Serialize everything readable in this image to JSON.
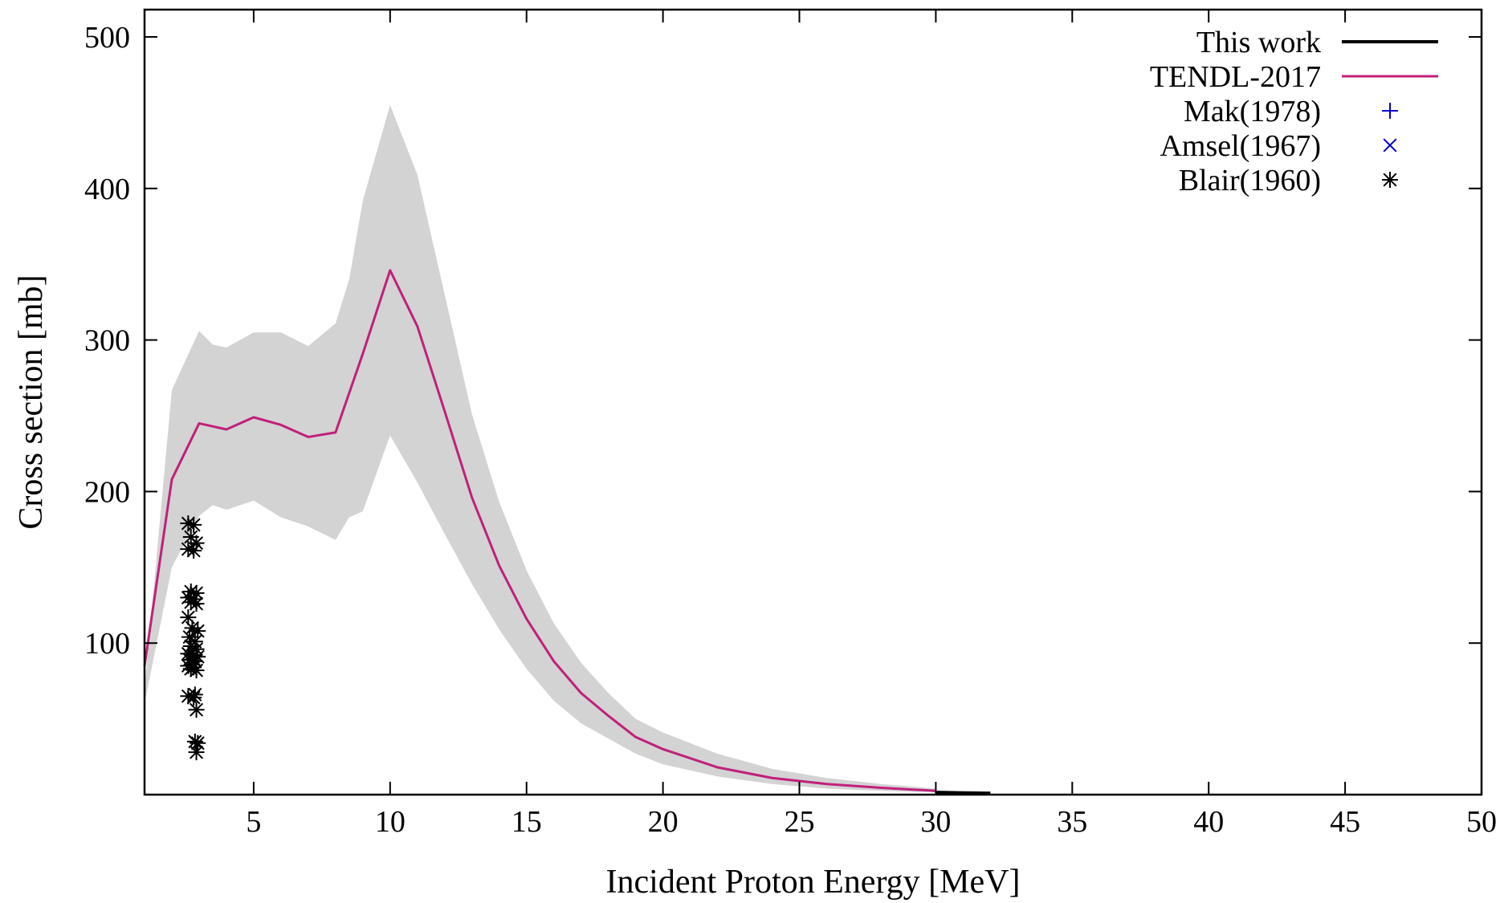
{
  "chart_data": {
    "type": "line",
    "xlabel": "Incident Proton Energy [MeV]",
    "ylabel": "Cross section [mb]",
    "xlim": [
      1,
      50
    ],
    "ylim": [
      0,
      518
    ],
    "x_ticks": [
      5,
      10,
      15,
      20,
      25,
      30,
      35,
      40,
      45,
      50
    ],
    "y_ticks": [
      100,
      200,
      300,
      400,
      500
    ],
    "grid": false,
    "legend_position": "top-right",
    "series": [
      {
        "name": "This work",
        "style": "line",
        "color": "#000000",
        "x": [
          30,
          31,
          32
        ],
        "y": [
          1.5,
          1.2,
          0.9
        ]
      },
      {
        "name": "TENDL-2017",
        "style": "line",
        "color": "#c0207a",
        "x": [
          1,
          2,
          3,
          4,
          5,
          6,
          7,
          8,
          9,
          10,
          11,
          12,
          13,
          14,
          15,
          16,
          17,
          18,
          19,
          20,
          22,
          24,
          26,
          28,
          30
        ],
        "y": [
          85,
          208,
          245,
          241,
          249,
          244,
          236,
          239,
          291,
          346,
          309,
          253,
          196,
          151,
          116,
          88,
          67,
          52,
          38,
          30,
          18,
          11,
          7,
          4.5,
          2.5
        ]
      },
      {
        "name": "",
        "style": "band",
        "color": "#d3d3d3",
        "x": [
          1,
          2,
          3,
          3.5,
          4,
          5,
          6,
          7,
          8,
          8.5,
          9,
          10,
          11,
          12,
          13,
          14,
          15,
          16,
          17,
          18,
          19,
          20,
          22,
          24,
          26,
          28,
          30
        ],
        "upper": [
          70,
          267,
          306,
          297,
          295,
          305,
          305,
          296,
          311,
          340,
          392,
          455,
          409,
          330,
          251,
          193,
          148,
          113,
          87,
          67,
          50,
          41,
          27,
          17,
          11,
          7,
          4
        ],
        "lower": [
          60,
          150,
          184,
          191,
          188,
          194,
          183,
          177,
          168,
          183,
          187,
          237,
          206,
          172,
          139,
          109,
          83,
          62,
          47,
          37,
          27,
          20,
          12,
          7,
          4,
          2.5,
          1.5
        ]
      },
      {
        "name": "Mak(1978)",
        "style": "marker",
        "marker": "plus",
        "color": "#0000cc",
        "x": [],
        "y": []
      },
      {
        "name": "Amsel(1967)",
        "style": "marker",
        "marker": "cross",
        "color": "#0000cc",
        "x": [],
        "y": []
      },
      {
        "name": "Blair(1960)",
        "style": "marker",
        "marker": "star",
        "color": "#000000",
        "x": [
          2.6,
          2.8,
          2.7,
          2.9,
          2.6,
          2.8,
          2.7,
          2.9,
          2.6,
          2.8,
          2.7,
          2.9,
          2.6,
          2.75,
          2.95,
          2.65,
          2.85,
          2.7,
          2.9,
          2.6,
          2.8,
          2.95,
          2.65,
          2.85,
          2.75,
          2.6,
          2.8,
          2.7,
          2.9,
          2.85,
          2.6,
          2.8,
          2.9,
          2.85,
          2.95,
          2.9
        ],
        "y": [
          179,
          178,
          170,
          166,
          162,
          161,
          134,
          133,
          130,
          129,
          127,
          126,
          117,
          110,
          108,
          104,
          101,
          98,
          96,
          93,
          92,
          91,
          89,
          88,
          86,
          85,
          84,
          83,
          82,
          66,
          65,
          64,
          56,
          35,
          34,
          28
        ]
      }
    ]
  }
}
